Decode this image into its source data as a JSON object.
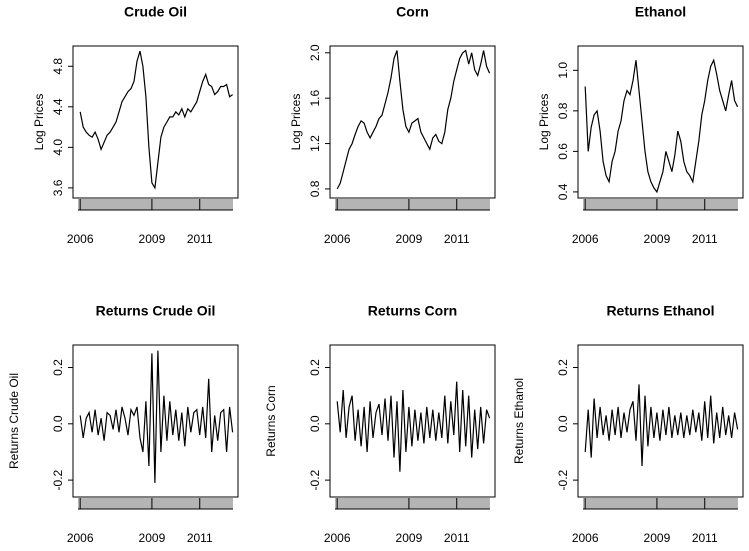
{
  "chart_data": [
    {
      "type": "line",
      "title": "Crude Oil",
      "ylabel": "Log Prices",
      "color": "#000000",
      "x": [
        2006,
        2006.125,
        2006.25,
        2006.375,
        2006.5,
        2006.625,
        2006.75,
        2006.875,
        2007,
        2007.125,
        2007.25,
        2007.375,
        2007.5,
        2007.625,
        2007.75,
        2007.875,
        2008,
        2008.125,
        2008.25,
        2008.375,
        2008.5,
        2008.625,
        2008.75,
        2008.875,
        2009,
        2009.125,
        2009.25,
        2009.375,
        2009.5,
        2009.625,
        2009.75,
        2009.875,
        2010,
        2010.125,
        2010.25,
        2010.375,
        2010.5,
        2010.625,
        2010.75,
        2010.875,
        2011,
        2011.125,
        2011.25,
        2011.375,
        2011.5,
        2011.625,
        2011.75,
        2011.875,
        2012,
        2012.125,
        2012.25,
        2012.375
      ],
      "values": [
        4.35,
        4.2,
        4.15,
        4.12,
        4.1,
        4.15,
        4.08,
        3.98,
        4.05,
        4.12,
        4.15,
        4.2,
        4.25,
        4.35,
        4.45,
        4.5,
        4.55,
        4.58,
        4.65,
        4.85,
        4.95,
        4.8,
        4.5,
        4.0,
        3.65,
        3.6,
        3.85,
        4.1,
        4.2,
        4.25,
        4.3,
        4.3,
        4.35,
        4.32,
        4.38,
        4.3,
        4.38,
        4.35,
        4.4,
        4.45,
        4.55,
        4.65,
        4.72,
        4.62,
        4.6,
        4.52,
        4.55,
        4.6,
        4.6,
        4.62,
        4.5,
        4.52
      ],
      "xlim": [
        2005.7,
        2012.6
      ],
      "xticks": [
        2006,
        2009,
        2011
      ],
      "ylim": [
        3.5,
        5.0
      ],
      "yticks": [
        3.6,
        {
          "value": 4,
          "label": "4.0"
        },
        4.4,
        4.8
      ]
    },
    {
      "type": "line",
      "title": "Corn",
      "ylabel": "Log Prices",
      "color": "#000000",
      "x": [
        2006,
        2006.125,
        2006.25,
        2006.375,
        2006.5,
        2006.625,
        2006.75,
        2006.875,
        2007,
        2007.125,
        2007.25,
        2007.375,
        2007.5,
        2007.625,
        2007.75,
        2007.875,
        2008,
        2008.125,
        2008.25,
        2008.375,
        2008.5,
        2008.625,
        2008.75,
        2008.875,
        2009,
        2009.125,
        2009.25,
        2009.375,
        2009.5,
        2009.625,
        2009.75,
        2009.875,
        2010,
        2010.125,
        2010.25,
        2010.375,
        2010.5,
        2010.625,
        2010.75,
        2010.875,
        2011,
        2011.125,
        2011.25,
        2011.375,
        2011.5,
        2011.625,
        2011.75,
        2011.875,
        2012,
        2012.125,
        2012.25,
        2012.375
      ],
      "values": [
        0.8,
        0.85,
        0.95,
        1.05,
        1.15,
        1.2,
        1.28,
        1.35,
        1.4,
        1.38,
        1.3,
        1.25,
        1.3,
        1.35,
        1.42,
        1.45,
        1.55,
        1.65,
        1.78,
        1.95,
        2.02,
        1.75,
        1.5,
        1.35,
        1.3,
        1.38,
        1.4,
        1.42,
        1.3,
        1.25,
        1.2,
        1.15,
        1.25,
        1.28,
        1.22,
        1.2,
        1.3,
        1.5,
        1.6,
        1.75,
        1.85,
        1.95,
        2.0,
        2.02,
        1.9,
        2.0,
        1.85,
        1.8,
        1.9,
        2.02,
        1.88,
        1.82
      ],
      "xlim": [
        2005.7,
        2012.6
      ],
      "xticks": [
        2006,
        2009,
        2011
      ],
      "ylim": [
        0.72,
        2.06
      ],
      "yticks": [
        0.8,
        1.2,
        1.6,
        {
          "value": 2,
          "label": "2.0"
        }
      ]
    },
    {
      "type": "line",
      "title": "Ethanol",
      "ylabel": "Log Prices",
      "color": "#000000",
      "x": [
        2006,
        2006.125,
        2006.25,
        2006.375,
        2006.5,
        2006.625,
        2006.75,
        2006.875,
        2007,
        2007.125,
        2007.25,
        2007.375,
        2007.5,
        2007.625,
        2007.75,
        2007.875,
        2008,
        2008.125,
        2008.25,
        2008.375,
        2008.5,
        2008.625,
        2008.75,
        2008.875,
        2009,
        2009.125,
        2009.25,
        2009.375,
        2009.5,
        2009.625,
        2009.75,
        2009.875,
        2010,
        2010.125,
        2010.25,
        2010.375,
        2010.5,
        2010.625,
        2010.75,
        2010.875,
        2011,
        2011.125,
        2011.25,
        2011.375,
        2011.5,
        2011.625,
        2011.75,
        2011.875,
        2012,
        2012.125,
        2012.25,
        2012.375
      ],
      "values": [
        0.92,
        0.6,
        0.72,
        0.78,
        0.8,
        0.7,
        0.55,
        0.48,
        0.45,
        0.55,
        0.6,
        0.7,
        0.75,
        0.85,
        0.9,
        0.88,
        0.95,
        1.05,
        0.9,
        0.75,
        0.6,
        0.5,
        0.45,
        0.42,
        0.4,
        0.45,
        0.5,
        0.6,
        0.55,
        0.5,
        0.58,
        0.7,
        0.65,
        0.55,
        0.5,
        0.48,
        0.45,
        0.55,
        0.65,
        0.78,
        0.85,
        0.95,
        1.02,
        1.05,
        0.98,
        0.9,
        0.85,
        0.8,
        0.88,
        0.95,
        0.85,
        0.82
      ],
      "xlim": [
        2005.7,
        2012.6
      ],
      "xticks": [
        2006,
        2009,
        2011
      ],
      "ylim": [
        0.37,
        1.12
      ],
      "yticks": [
        0.4,
        0.6,
        0.8,
        {
          "value": 1,
          "label": "1.0"
        }
      ]
    },
    {
      "type": "line",
      "title": "Returns Crude Oil",
      "ylabel": "Returns Crude Oil",
      "color": "#000000",
      "x": [
        2006,
        2006.125,
        2006.25,
        2006.375,
        2006.5,
        2006.625,
        2006.75,
        2006.875,
        2007,
        2007.125,
        2007.25,
        2007.375,
        2007.5,
        2007.625,
        2007.75,
        2007.875,
        2008,
        2008.125,
        2008.25,
        2008.375,
        2008.5,
        2008.625,
        2008.75,
        2008.875,
        2009,
        2009.125,
        2009.25,
        2009.375,
        2009.5,
        2009.625,
        2009.75,
        2009.875,
        2010,
        2010.125,
        2010.25,
        2010.375,
        2010.5,
        2010.625,
        2010.75,
        2010.875,
        2011,
        2011.125,
        2011.25,
        2011.375,
        2011.5,
        2011.625,
        2011.75,
        2011.875,
        2012,
        2012.125,
        2012.25,
        2012.375
      ],
      "values": [
        0.03,
        -0.05,
        0.02,
        0.04,
        -0.03,
        0.05,
        -0.04,
        0.02,
        -0.06,
        0.04,
        0.03,
        -0.02,
        0.05,
        -0.03,
        0.06,
        0.02,
        -0.04,
        0.05,
        0.03,
        0.06,
        -0.05,
        -0.1,
        0.08,
        -0.15,
        0.25,
        -0.21,
        0.26,
        -0.1,
        0.1,
        -0.06,
        0.08,
        -0.04,
        0.05,
        -0.06,
        0.04,
        -0.08,
        0.06,
        -0.03,
        0.04,
        0.05,
        -0.04,
        0.06,
        -0.05,
        0.16,
        -0.1,
        0.03,
        -0.06,
        0.04,
        0.05,
        -0.1,
        0.06,
        -0.03
      ],
      "xlim": [
        2005.7,
        2012.6
      ],
      "xticks": [
        2006,
        2009,
        2011
      ],
      "ylim": [
        -0.26,
        0.28
      ],
      "yticks": [
        -0.2,
        {
          "value": 0,
          "label": "0.0"
        },
        0.2
      ]
    },
    {
      "type": "line",
      "title": "Returns Corn",
      "ylabel": "Returns Corn",
      "color": "#000000",
      "x": [
        2006,
        2006.125,
        2006.25,
        2006.375,
        2006.5,
        2006.625,
        2006.75,
        2006.875,
        2007,
        2007.125,
        2007.25,
        2007.375,
        2007.5,
        2007.625,
        2007.75,
        2007.875,
        2008,
        2008.125,
        2008.25,
        2008.375,
        2008.5,
        2008.625,
        2008.75,
        2008.875,
        2009,
        2009.125,
        2009.25,
        2009.375,
        2009.5,
        2009.625,
        2009.75,
        2009.875,
        2010,
        2010.125,
        2010.25,
        2010.375,
        2010.5,
        2010.625,
        2010.75,
        2010.875,
        2011,
        2011.125,
        2011.25,
        2011.375,
        2011.5,
        2011.625,
        2011.75,
        2011.875,
        2012,
        2012.125,
        2012.25,
        2012.375
      ],
      "values": [
        0.08,
        -0.03,
        0.12,
        -0.05,
        0.06,
        0.1,
        -0.06,
        0.05,
        -0.08,
        0.06,
        -0.1,
        0.08,
        -0.05,
        0.04,
        0.07,
        -0.04,
        0.09,
        -0.06,
        0.1,
        -0.12,
        0.08,
        -0.17,
        0.12,
        -0.1,
        0.06,
        -0.08,
        0.05,
        -0.06,
        0.04,
        -0.07,
        0.06,
        -0.05,
        0.05,
        -0.06,
        0.04,
        -0.05,
        0.1,
        -0.07,
        0.08,
        -0.04,
        0.15,
        -0.1,
        0.12,
        -0.08,
        0.1,
        -0.12,
        0.05,
        -0.09,
        0.06,
        -0.07,
        0.05,
        0.02
      ],
      "xlim": [
        2005.7,
        2012.6
      ],
      "xticks": [
        2006,
        2009,
        2011
      ],
      "ylim": [
        -0.26,
        0.28
      ],
      "yticks": [
        -0.2,
        {
          "value": 0,
          "label": "0.0"
        },
        0.2
      ]
    },
    {
      "type": "line",
      "title": "Returns Ethanol",
      "ylabel": "Returns Ethanol",
      "color": "#000000",
      "x": [
        2006,
        2006.125,
        2006.25,
        2006.375,
        2006.5,
        2006.625,
        2006.75,
        2006.875,
        2007,
        2007.125,
        2007.25,
        2007.375,
        2007.5,
        2007.625,
        2007.75,
        2007.875,
        2008,
        2008.125,
        2008.25,
        2008.375,
        2008.5,
        2008.625,
        2008.75,
        2008.875,
        2009,
        2009.125,
        2009.25,
        2009.375,
        2009.5,
        2009.625,
        2009.75,
        2009.875,
        2010,
        2010.125,
        2010.25,
        2010.375,
        2010.5,
        2010.625,
        2010.75,
        2010.875,
        2011,
        2011.125,
        2011.25,
        2011.375,
        2011.5,
        2011.625,
        2011.75,
        2011.875,
        2012,
        2012.125,
        2012.25,
        2012.375
      ],
      "values": [
        -0.1,
        0.05,
        -0.12,
        0.09,
        -0.05,
        0.06,
        -0.04,
        0.03,
        -0.06,
        0.05,
        -0.04,
        0.06,
        -0.05,
        0.04,
        -0.03,
        0.05,
        0.08,
        -0.06,
        0.14,
        -0.15,
        0.1,
        -0.08,
        0.06,
        -0.05,
        0.04,
        -0.06,
        0.05,
        -0.04,
        0.06,
        -0.05,
        0.03,
        -0.04,
        0.04,
        -0.05,
        0.03,
        -0.04,
        0.05,
        -0.03,
        0.04,
        -0.06,
        0.08,
        -0.05,
        0.1,
        -0.07,
        0.04,
        -0.05,
        0.06,
        -0.04,
        0.03,
        -0.05,
        0.04,
        -0.02
      ],
      "xlim": [
        2005.7,
        2012.6
      ],
      "xticks": [
        2006,
        2009,
        2011
      ],
      "ylim": [
        -0.26,
        0.28
      ],
      "yticks": [
        -0.2,
        {
          "value": 0,
          "label": "0.0"
        },
        0.2
      ]
    }
  ]
}
